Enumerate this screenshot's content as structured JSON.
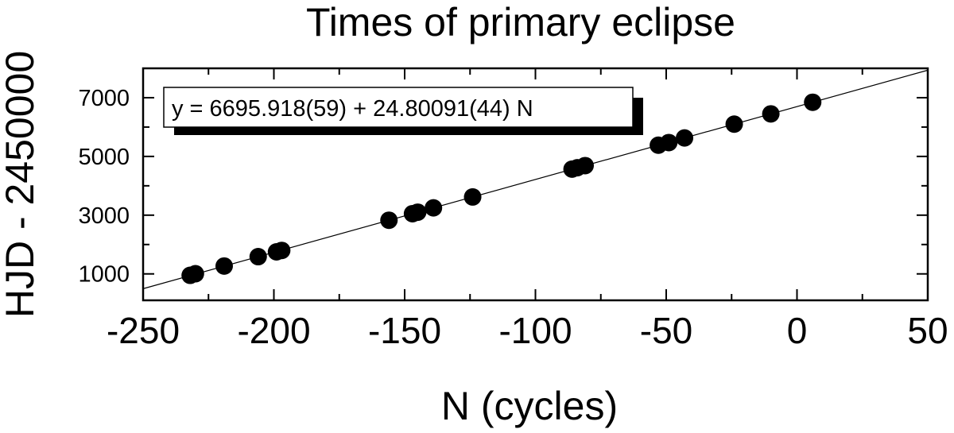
{
  "chart_data": {
    "type": "scatter",
    "title": "Times of primary eclipse",
    "xlabel": "N (cycles)",
    "ylabel": "HJD - 2450000",
    "xlim": [
      -250,
      50
    ],
    "ylim": [
      100,
      8000
    ],
    "x_ticks": [
      -250,
      -200,
      -150,
      -100,
      -50,
      0,
      50
    ],
    "x_tick_labels": [
      "-250",
      "-200",
      "-150",
      "-100",
      "-50",
      "0",
      "50"
    ],
    "y_ticks": [
      1000,
      3000,
      5000,
      7000
    ],
    "y_tick_labels": [
      "1000",
      "3000",
      "5000",
      "7000"
    ],
    "grid": false,
    "series": [
      {
        "x": [
          -232,
          -230,
          -219,
          -206,
          -199,
          -197,
          -156,
          -147,
          -145,
          -139,
          -124,
          -86,
          -84,
          -81,
          -53,
          -49,
          -43,
          -24,
          -10,
          6
        ],
        "y": [
          951,
          1005,
          1268,
          1587,
          1750,
          1799,
          2827,
          3050,
          3101,
          3248,
          3619,
          4567,
          4615,
          4687,
          5382,
          5472,
          5629,
          6100,
          6449,
          6845
        ]
      }
    ],
    "fit": {
      "intercept": 6695.918,
      "slope": 24.80091,
      "label": "y = 6695.918(59) + 24.80091(44) N"
    }
  }
}
